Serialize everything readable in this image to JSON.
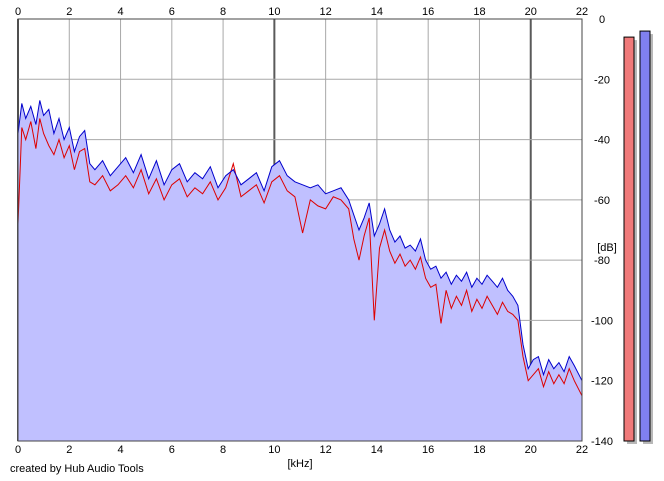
{
  "chart_data": {
    "type": "area",
    "x_unit_label": "[kHz]",
    "y_unit_label": "[dB]",
    "xlim": [
      0,
      22
    ],
    "ylim": [
      -140,
      0
    ],
    "x_ticks": [
      "0",
      "2",
      "4",
      "6",
      "8",
      "10",
      "12",
      "14",
      "16",
      "18",
      "20",
      "22"
    ],
    "y_ticks": [
      "0",
      "-20",
      "-40",
      "-60",
      "-80",
      "-100",
      "-120",
      "-140"
    ],
    "grid": true,
    "series": [
      {
        "color": "#0000cc",
        "x": [
          0.0,
          0.15,
          0.3,
          0.5,
          0.7,
          0.85,
          1.0,
          1.2,
          1.4,
          1.6,
          1.8,
          2.0,
          2.2,
          2.4,
          2.6,
          2.8,
          3.0,
          3.3,
          3.6,
          3.9,
          4.2,
          4.5,
          4.8,
          5.1,
          5.4,
          5.7,
          6.0,
          6.3,
          6.6,
          6.9,
          7.2,
          7.5,
          7.8,
          8.1,
          8.4,
          8.7,
          9.0,
          9.3,
          9.6,
          9.9,
          10.2,
          10.5,
          10.8,
          11.1,
          11.4,
          11.7,
          12.0,
          12.3,
          12.6,
          12.9,
          13.1,
          13.3,
          13.5,
          13.7,
          13.9,
          14.1,
          14.3,
          14.5,
          14.7,
          14.9,
          15.1,
          15.3,
          15.5,
          15.7,
          15.9,
          16.1,
          16.3,
          16.5,
          16.7,
          16.9,
          17.1,
          17.3,
          17.5,
          17.7,
          17.9,
          18.1,
          18.3,
          18.5,
          18.7,
          18.9,
          19.1,
          19.3,
          19.5,
          19.7,
          19.9,
          20.1,
          20.3,
          20.5,
          20.7,
          20.9,
          21.1,
          21.3,
          21.5,
          21.7,
          22.0
        ],
        "values": [
          -38,
          -28,
          -33,
          -29,
          -35,
          -27,
          -32,
          -30,
          -38,
          -33,
          -40,
          -36,
          -44,
          -39,
          -37,
          -48,
          -50,
          -47,
          -52,
          -49,
          -46,
          -51,
          -45,
          -53,
          -47,
          -55,
          -50,
          -48,
          -54,
          -51,
          -53,
          -49,
          -56,
          -52,
          -50,
          -55,
          -53,
          -51,
          -57,
          -49,
          -47,
          -52,
          -54,
          -55,
          -56,
          -55,
          -58,
          -57,
          -56,
          -60,
          -65,
          -70,
          -66,
          -61,
          -72,
          -68,
          -63,
          -70,
          -74,
          -72,
          -76,
          -75,
          -77,
          -73,
          -80,
          -83,
          -82,
          -86,
          -84,
          -88,
          -85,
          -87,
          -84,
          -89,
          -86,
          -88,
          -85,
          -87,
          -89,
          -86,
          -90,
          -92,
          -95,
          -108,
          -116,
          -113,
          -112,
          -118,
          -113,
          -116,
          -114,
          -117,
          -112,
          -115,
          -120
        ]
      },
      {
        "color": "#dd0000",
        "x": [
          0.0,
          0.15,
          0.3,
          0.5,
          0.7,
          0.85,
          1.0,
          1.2,
          1.4,
          1.6,
          1.8,
          2.0,
          2.2,
          2.4,
          2.6,
          2.8,
          3.0,
          3.3,
          3.6,
          3.9,
          4.2,
          4.5,
          4.8,
          5.1,
          5.4,
          5.7,
          6.0,
          6.3,
          6.6,
          6.9,
          7.2,
          7.5,
          7.8,
          8.1,
          8.4,
          8.7,
          9.0,
          9.3,
          9.6,
          9.9,
          10.2,
          10.5,
          10.8,
          11.1,
          11.4,
          11.7,
          12.0,
          12.3,
          12.6,
          12.9,
          13.1,
          13.3,
          13.5,
          13.7,
          13.9,
          14.1,
          14.3,
          14.5,
          14.7,
          14.9,
          15.1,
          15.3,
          15.5,
          15.7,
          15.9,
          16.1,
          16.3,
          16.5,
          16.7,
          16.9,
          17.1,
          17.3,
          17.5,
          17.7,
          17.9,
          18.1,
          18.3,
          18.5,
          18.7,
          18.9,
          19.1,
          19.3,
          19.5,
          19.7,
          19.9,
          20.1,
          20.3,
          20.5,
          20.7,
          20.9,
          21.1,
          21.3,
          21.5,
          21.7,
          22.0
        ],
        "values": [
          -68,
          -36,
          -40,
          -34,
          -43,
          -33,
          -38,
          -42,
          -45,
          -40,
          -46,
          -42,
          -50,
          -44,
          -43,
          -54,
          -55,
          -52,
          -57,
          -55,
          -52,
          -56,
          -50,
          -58,
          -53,
          -60,
          -55,
          -53,
          -59,
          -56,
          -58,
          -54,
          -60,
          -56,
          -48,
          -59,
          -57,
          -55,
          -61,
          -54,
          -52,
          -57,
          -59,
          -71,
          -60,
          -62,
          -63,
          -59,
          -60,
          -63,
          -73,
          -80,
          -72,
          -66,
          -100,
          -76,
          -70,
          -77,
          -81,
          -78,
          -82,
          -80,
          -83,
          -79,
          -86,
          -89,
          -88,
          -101,
          -90,
          -96,
          -92,
          -95,
          -90,
          -97,
          -93,
          -96,
          -92,
          -95,
          -98,
          -94,
          -97,
          -98,
          -100,
          -112,
          -120,
          -118,
          -116,
          -122,
          -117,
          -121,
          -118,
          -121,
          -116,
          -120,
          -125
        ]
      }
    ],
    "level_meters": [
      {
        "color": "#f07a7a",
        "top_db": -6
      },
      {
        "color": "#8080f0",
        "top_db": -4
      }
    ]
  },
  "credit": "created by Hub Audio Tools"
}
